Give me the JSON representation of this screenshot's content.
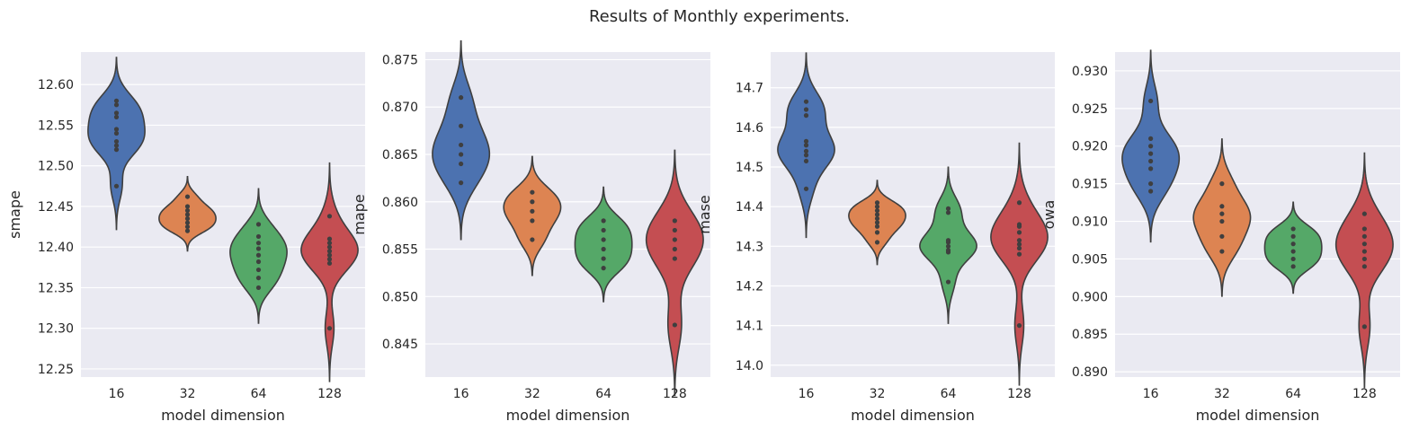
{
  "figure": {
    "title": "Results of Monthly experiments."
  },
  "chart_data": [
    {
      "type": "violin",
      "xlabel": "model dimension",
      "ylabel": "smape",
      "categories": [
        "16",
        "32",
        "64",
        "128"
      ],
      "ylim": [
        12.24,
        12.64
      ],
      "yticks": [
        12.25,
        12.3,
        12.35,
        12.4,
        12.45,
        12.5,
        12.55,
        12.6
      ],
      "ytick_labels": [
        "12.25",
        "12.30",
        "12.35",
        "12.40",
        "12.45",
        "12.50",
        "12.55",
        "12.60"
      ],
      "grid": true,
      "series": [
        {
          "values": [
            12.475,
            12.52,
            12.525,
            12.53,
            12.54,
            12.545,
            12.56,
            12.565,
            12.575,
            12.58
          ]
        },
        {
          "values": [
            12.42,
            12.425,
            12.43,
            12.435,
            12.44,
            12.445,
            12.45,
            12.462
          ]
        },
        {
          "values": [
            12.35,
            12.362,
            12.372,
            12.382,
            12.39,
            12.398,
            12.405,
            12.413,
            12.428
          ]
        },
        {
          "values": [
            12.3,
            12.38,
            12.385,
            12.39,
            12.395,
            12.4,
            12.405,
            12.41,
            12.438
          ]
        }
      ]
    },
    {
      "type": "violin",
      "xlabel": "model dimension",
      "ylabel": "mape",
      "categories": [
        "16",
        "32",
        "64",
        "128"
      ],
      "ylim": [
        0.8415,
        0.8758
      ],
      "yticks": [
        0.845,
        0.85,
        0.855,
        0.86,
        0.865,
        0.87,
        0.875
      ],
      "ytick_labels": [
        "0.845",
        "0.850",
        "0.855",
        "0.860",
        "0.865",
        "0.870",
        "0.875"
      ],
      "grid": true,
      "series": [
        {
          "values": [
            0.862,
            0.864,
            0.865,
            0.866,
            0.868,
            0.871
          ]
        },
        {
          "values": [
            0.856,
            0.858,
            0.859,
            0.86,
            0.861
          ]
        },
        {
          "values": [
            0.853,
            0.854,
            0.855,
            0.856,
            0.857,
            0.858
          ]
        },
        {
          "values": [
            0.847,
            0.854,
            0.855,
            0.856,
            0.857,
            0.858
          ]
        }
      ]
    },
    {
      "type": "violin",
      "xlabel": "model dimension",
      "ylabel": "mase",
      "categories": [
        "16",
        "32",
        "64",
        "128"
      ],
      "ylim": [
        13.97,
        14.79
      ],
      "yticks": [
        14.0,
        14.1,
        14.2,
        14.3,
        14.4,
        14.5,
        14.6,
        14.7
      ],
      "ytick_labels": [
        "14.0",
        "14.1",
        "14.2",
        "14.3",
        "14.4",
        "14.5",
        "14.6",
        "14.7"
      ],
      "grid": true,
      "series": [
        {
          "values": [
            14.445,
            14.515,
            14.53,
            14.54,
            14.555,
            14.565,
            14.63,
            14.645,
            14.665
          ]
        },
        {
          "values": [
            14.31,
            14.335,
            14.35,
            14.36,
            14.37,
            14.38,
            14.39,
            14.4,
            14.41
          ]
        },
        {
          "values": [
            14.21,
            14.285,
            14.29,
            14.3,
            14.31,
            14.315,
            14.385,
            14.395
          ]
        },
        {
          "values": [
            14.1,
            14.28,
            14.295,
            14.305,
            14.315,
            14.335,
            14.35,
            14.355,
            14.41
          ]
        }
      ]
    },
    {
      "type": "violin",
      "xlabel": "model dimension",
      "ylabel": "owa",
      "categories": [
        "16",
        "32",
        "64",
        "128"
      ],
      "ylim": [
        0.8893,
        0.9325
      ],
      "yticks": [
        0.89,
        0.895,
        0.9,
        0.905,
        0.91,
        0.915,
        0.92,
        0.925,
        0.93
      ],
      "ytick_labels": [
        "0.890",
        "0.895",
        "0.900",
        "0.905",
        "0.910",
        "0.915",
        "0.920",
        "0.925",
        "0.930"
      ],
      "grid": true,
      "series": [
        {
          "values": [
            0.914,
            0.915,
            0.917,
            0.918,
            0.919,
            0.92,
            0.921,
            0.926
          ]
        },
        {
          "values": [
            0.906,
            0.908,
            0.91,
            0.911,
            0.912,
            0.915
          ]
        },
        {
          "values": [
            0.904,
            0.905,
            0.906,
            0.907,
            0.908,
            0.909
          ]
        },
        {
          "values": [
            0.896,
            0.904,
            0.905,
            0.906,
            0.907,
            0.908,
            0.909,
            0.911
          ]
        }
      ]
    }
  ],
  "colors": {
    "series": [
      "#4c72b0",
      "#dd8452",
      "#55a868",
      "#c44e52"
    ],
    "panel_bg": "#eaeaf2",
    "grid": "#ffffff",
    "outline": "#3f3f3f",
    "points": "#3f3f3f"
  }
}
